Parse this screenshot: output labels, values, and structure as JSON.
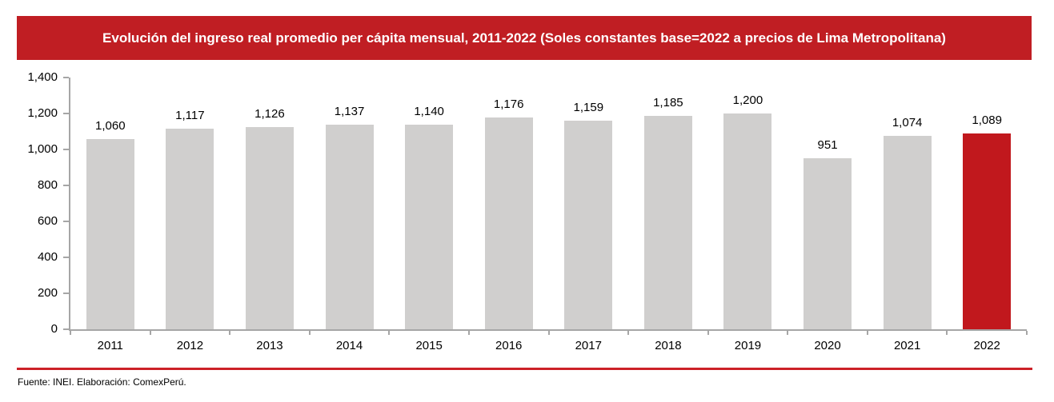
{
  "header": {
    "title": "Evolución del ingreso real promedio per cápita mensual, 2011-2022 (Soles constantes base=2022 a precios de Lima Metropolitana)"
  },
  "chart_data": {
    "type": "bar",
    "title": "Evolución del ingreso real promedio per cápita mensual, 2011-2022 (Soles constantes base=2022 a precios de Lima Metropolitana)",
    "categories": [
      "2011",
      "2012",
      "2013",
      "2014",
      "2015",
      "2016",
      "2017",
      "2018",
      "2019",
      "2020",
      "2021",
      "2022"
    ],
    "values": [
      1060,
      1117,
      1126,
      1137,
      1140,
      1176,
      1159,
      1185,
      1200,
      951,
      1074,
      1089
    ],
    "value_labels": [
      "1,060",
      "1,117",
      "1,126",
      "1,137",
      "1,140",
      "1,176",
      "1,159",
      "1,185",
      "1,200",
      "951",
      "1,074",
      "1,089"
    ],
    "xlabel": "",
    "ylabel": "",
    "ylim": [
      0,
      1400
    ],
    "yticks": [
      0,
      200,
      400,
      600,
      800,
      1000,
      1200,
      1400
    ],
    "ytick_labels": [
      "0",
      "200",
      "400",
      "600",
      "800",
      "1,000",
      "1,200",
      "1,400"
    ],
    "grid": false,
    "legend": false,
    "bar_color": "#D0CFCE",
    "highlight_color": "#C1181D",
    "highlight_category": "2022"
  },
  "footer": {
    "source": "Fuente: INEI. Elaboración: ComexPerú."
  },
  "colors": {
    "banner_bg": "#C01E23",
    "banner_text": "#FFFFFF",
    "axis": "#A6A6A6",
    "divider": "#CC2128",
    "text": "#000000",
    "background": "#FFFFFF"
  }
}
